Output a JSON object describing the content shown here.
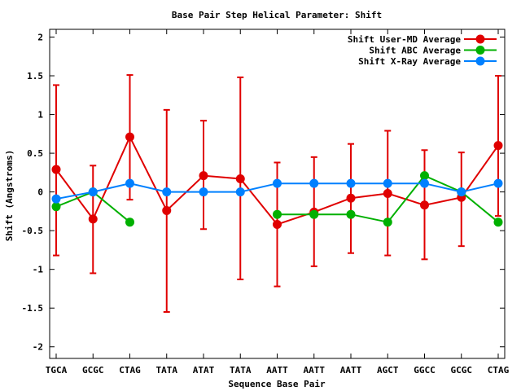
{
  "chart_data": {
    "type": "line",
    "title": "Base Pair Step Helical Parameter: Shift",
    "xlabel": "Sequence Base Pair",
    "ylabel": "Shift (Angstroms)",
    "categories": [
      "TGCA",
      "GCGC",
      "CTAG",
      "TATA",
      "ATAT",
      "TATA",
      "AATT",
      "AATT",
      "AATT",
      "AGCT",
      "GGCC",
      "GCGC",
      "CTAG"
    ],
    "ylim": [
      -2.15,
      2.1
    ],
    "yticks": [
      -2,
      -1.5,
      -1,
      -0.5,
      0,
      0.5,
      1,
      1.5,
      2
    ],
    "ytick_labels": [
      "-2",
      "-1.5",
      "-1",
      "-0.5",
      "0",
      "0.5",
      "1",
      "1.5",
      "2"
    ],
    "grid": false,
    "legend_position": "top-right",
    "series": [
      {
        "name": "Shift User-MD Average",
        "color": "#e00000",
        "values": [
          0.29,
          -0.35,
          0.71,
          -0.24,
          0.21,
          0.17,
          -0.42,
          -0.26,
          -0.08,
          -0.02,
          -0.17,
          -0.07,
          0.6
        ],
        "error_low": [
          -0.82,
          -1.05,
          -0.1,
          -1.55,
          -0.48,
          -1.13,
          -1.22,
          -0.96,
          -0.79,
          -0.82,
          -0.87,
          -0.7,
          -0.31
        ],
        "error_high": [
          1.38,
          0.34,
          1.51,
          1.06,
          0.92,
          1.48,
          0.38,
          0.45,
          0.62,
          0.79,
          0.54,
          0.51,
          1.5
        ]
      },
      {
        "name": "Shift ABC Average",
        "color": "#00b000",
        "values": [
          -0.19,
          0.0,
          -0.39,
          null,
          null,
          null,
          -0.29,
          -0.29,
          -0.29,
          -0.39,
          0.21,
          0.0,
          -0.39
        ]
      },
      {
        "name": "Shift X-Ray Average",
        "color": "#0080ff",
        "values": [
          -0.09,
          0.0,
          0.11,
          0.0,
          0.0,
          0.0,
          0.11,
          0.11,
          0.11,
          0.11,
          0.11,
          0.0,
          0.11
        ]
      }
    ]
  }
}
